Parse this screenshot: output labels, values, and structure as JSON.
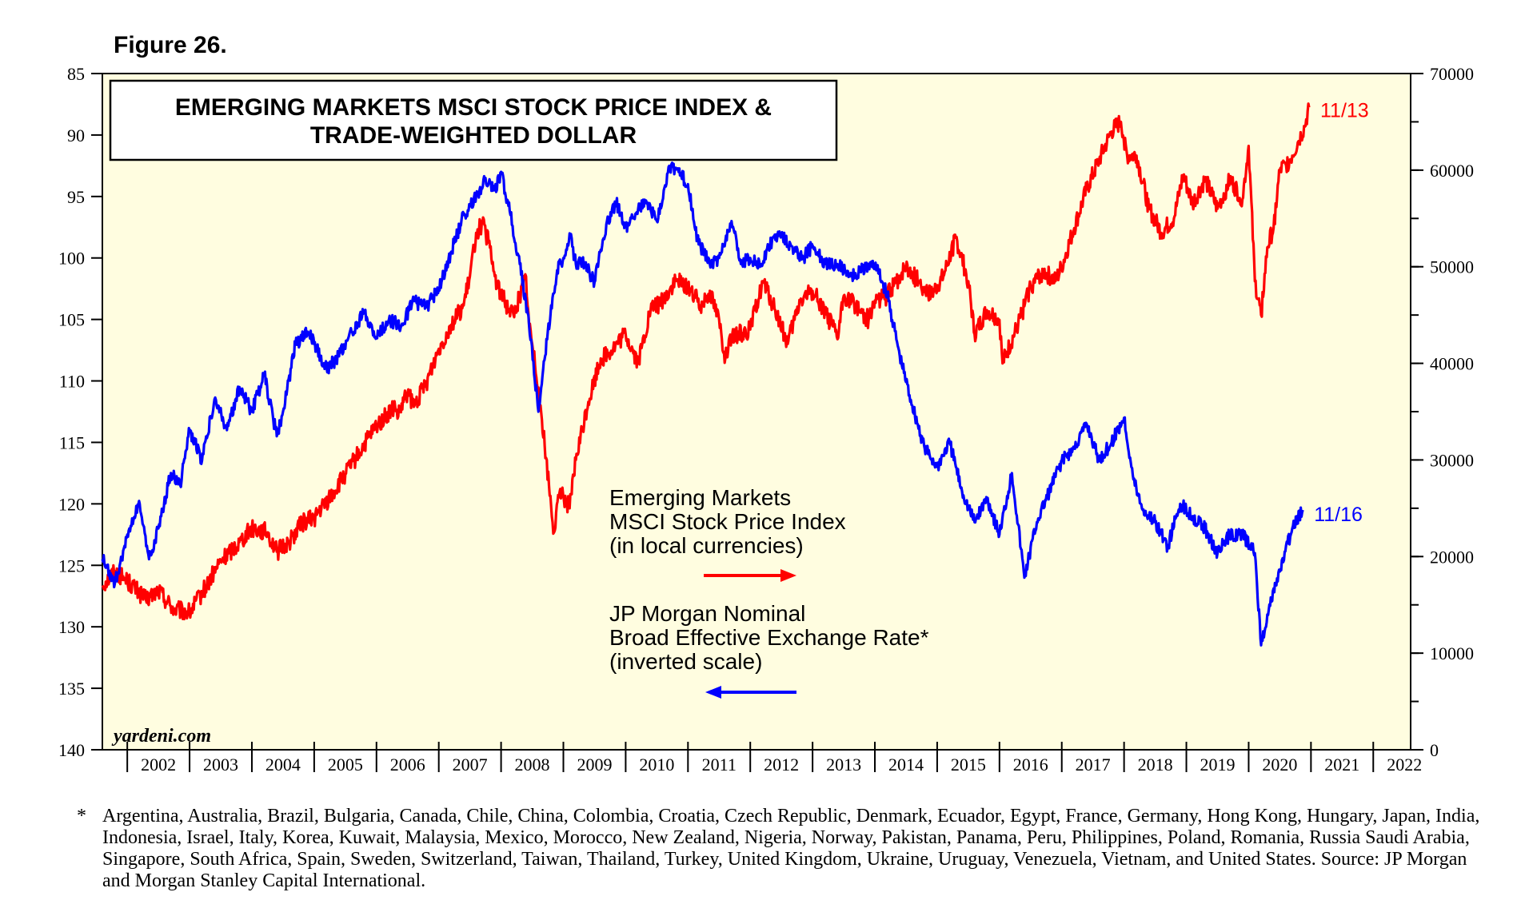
{
  "figure_label": "Figure 26.",
  "chart_data": {
    "type": "line",
    "title": "EMERGING MARKETS MSCI STOCK PRICE INDEX & TRADE-WEIGHTED DOLLAR",
    "title_lines": [
      "EMERGING MARKETS MSCI STOCK PRICE INDEX &",
      "TRADE-WEIGHTED DOLLAR"
    ],
    "x_range": [
      2001.6,
      2022.6
    ],
    "x_tick_labels": [
      "2002",
      "2003",
      "2004",
      "2005",
      "2006",
      "2007",
      "2008",
      "2009",
      "2010",
      "2011",
      "2012",
      "2013",
      "2014",
      "2015",
      "2016",
      "2017",
      "2018",
      "2019",
      "2020",
      "2021",
      "2022"
    ],
    "left_axis": {
      "range": [
        85,
        140
      ],
      "inverted": true,
      "ticks": [
        "85",
        "90",
        "95",
        "100",
        "105",
        "110",
        "115",
        "120",
        "125",
        "130",
        "135",
        "140"
      ]
    },
    "right_axis": {
      "range": [
        0,
        70000
      ],
      "ticks": [
        "0",
        "10000",
        "20000",
        "30000",
        "40000",
        "50000",
        "60000",
        "70000"
      ]
    },
    "grid": false,
    "background": "#fffde0",
    "series": [
      {
        "name": "Emerging Markets MSCI Stock Price Index (in local currencies)",
        "axis": "right",
        "color": "#ff0000",
        "end_label": "11/13",
        "x": [
          2001.6,
          2001.8,
          2002.0,
          2002.3,
          2002.5,
          2002.75,
          2003.0,
          2003.2,
          2003.5,
          2003.8,
          2004.0,
          2004.25,
          2004.4,
          2004.6,
          2004.8,
          2005.0,
          2005.3,
          2005.5,
          2005.8,
          2006.0,
          2006.3,
          2006.35,
          2006.5,
          2006.6,
          2006.8,
          2007.0,
          2007.2,
          2007.4,
          2007.5,
          2007.6,
          2007.7,
          2007.8,
          2007.9,
          2008.0,
          2008.2,
          2008.4,
          2008.45,
          2008.5,
          2008.6,
          2008.7,
          2008.85,
          2008.95,
          2009.1,
          2009.2,
          2009.4,
          2009.6,
          2009.8,
          2010.0,
          2010.2,
          2010.4,
          2010.6,
          2010.8,
          2011.0,
          2011.2,
          2011.35,
          2011.5,
          2011.6,
          2011.7,
          2011.8,
          2012.0,
          2012.2,
          2012.4,
          2012.6,
          2012.8,
          2013.0,
          2013.2,
          2013.4,
          2013.5,
          2013.7,
          2013.9,
          2014.0,
          2014.2,
          2014.3,
          2014.5,
          2014.7,
          2014.9,
          2015.1,
          2015.3,
          2015.5,
          2015.6,
          2015.8,
          2016.0,
          2016.05,
          2016.3,
          2016.5,
          2016.7,
          2016.9,
          2017.0,
          2017.2,
          2017.4,
          2017.6,
          2017.8,
          2017.95,
          2018.05,
          2018.2,
          2018.4,
          2018.6,
          2018.8,
          2018.95,
          2019.1,
          2019.3,
          2019.5,
          2019.7,
          2019.9,
          2020.0,
          2020.1,
          2020.2,
          2020.3,
          2020.4,
          2020.5,
          2020.6,
          2020.7,
          2020.8,
          2020.9,
          2020.97
        ],
        "values": [
          17000,
          18500,
          17500,
          15500,
          16500,
          14500,
          14200,
          16200,
          19500,
          21500,
          23000,
          22500,
          20500,
          21500,
          23500,
          24000,
          26500,
          28500,
          31500,
          33500,
          35500,
          34500,
          37000,
          35500,
          38000,
          41500,
          44000,
          46000,
          49000,
          53500,
          54500,
          52500,
          49000,
          47000,
          45000,
          49000,
          44000,
          42000,
          37500,
          31500,
          22500,
          27000,
          25000,
          30000,
          36000,
          40500,
          41500,
          43000,
          40000,
          45500,
          46500,
          48500,
          48000,
          46000,
          47500,
          44500,
          40500,
          42500,
          43000,
          43500,
          48500,
          45500,
          42000,
          46500,
          47500,
          45500,
          42500,
          47000,
          46000,
          44500,
          46500,
          47000,
          48000,
          50000,
          48500,
          47000,
          49000,
          53000,
          48500,
          43000,
          45500,
          44500,
          40000,
          44000,
          48000,
          49500,
          48500,
          50000,
          54000,
          58000,
          61000,
          64000,
          65000,
          61500,
          61500,
          56000,
          53500,
          55000,
          59500,
          56500,
          59000,
          56000,
          59000,
          57000,
          62500,
          48500,
          45000,
          52000,
          54000,
          60000,
          60500,
          61500,
          63000,
          64500,
          66500
        ]
      },
      {
        "name": "JP Morgan Nominal Broad Effective Exchange Rate* (inverted scale)",
        "axis": "left",
        "color": "#0000ff",
        "end_label": "11/16",
        "x": [
          2001.6,
          2001.8,
          2002.0,
          2002.2,
          2002.35,
          2002.5,
          2002.7,
          2002.85,
          2003.0,
          2003.2,
          2003.4,
          2003.6,
          2003.8,
          2004.0,
          2004.2,
          2004.4,
          2004.5,
          2004.7,
          2004.9,
          2005.0,
          2005.2,
          2005.4,
          2005.6,
          2005.8,
          2006.0,
          2006.2,
          2006.4,
          2006.6,
          2006.8,
          2007.0,
          2007.2,
          2007.4,
          2007.6,
          2007.75,
          2007.9,
          2008.0,
          2008.15,
          2008.3,
          2008.45,
          2008.6,
          2008.75,
          2008.9,
          2009.0,
          2009.1,
          2009.2,
          2009.35,
          2009.5,
          2009.7,
          2009.85,
          2010.0,
          2010.2,
          2010.35,
          2010.5,
          2010.7,
          2010.85,
          2011.0,
          2011.15,
          2011.35,
          2011.5,
          2011.7,
          2011.85,
          2012.0,
          2012.2,
          2012.35,
          2012.5,
          2012.7,
          2012.85,
          2013.0,
          2013.2,
          2013.4,
          2013.6,
          2013.8,
          2014.0,
          2014.2,
          2014.4,
          2014.6,
          2014.8,
          2015.0,
          2015.2,
          2015.4,
          2015.6,
          2015.8,
          2016.0,
          2016.2,
          2016.4,
          2016.6,
          2016.8,
          2017.0,
          2017.2,
          2017.4,
          2017.6,
          2017.8,
          2018.0,
          2018.15,
          2018.3,
          2018.5,
          2018.7,
          2018.9,
          2019.1,
          2019.3,
          2019.5,
          2019.7,
          2019.9,
          2020.1,
          2020.2,
          2020.3,
          2020.5,
          2020.7,
          2020.87
        ],
        "values": [
          124.5,
          126.5,
          122.5,
          120.0,
          124.5,
          122.0,
          117.5,
          118.5,
          114.0,
          116.5,
          111.5,
          114.0,
          110.5,
          112.5,
          109.5,
          114.5,
          112.5,
          107.0,
          106.0,
          107.0,
          109.0,
          108.0,
          106.0,
          104.5,
          106.5,
          105.0,
          105.5,
          103.5,
          104.0,
          102.5,
          99.5,
          96.5,
          95.0,
          93.5,
          94.5,
          93.0,
          96.5,
          100.5,
          105.5,
          112.5,
          106.0,
          101.0,
          100.0,
          98.0,
          100.5,
          100.5,
          102.0,
          97.0,
          95.5,
          97.5,
          96.0,
          95.5,
          97.0,
          92.5,
          93.0,
          94.0,
          98.5,
          100.5,
          100.0,
          97.0,
          100.5,
          100.0,
          100.5,
          98.5,
          98.0,
          99.5,
          100.0,
          99.0,
          100.5,
          100.5,
          101.5,
          101.0,
          100.5,
          103.0,
          108.0,
          112.0,
          115.5,
          117.0,
          115.0,
          119.0,
          121.5,
          119.5,
          122.5,
          117.5,
          126.0,
          121.5,
          119.0,
          116.5,
          115.5,
          113.5,
          116.5,
          115.0,
          113.0,
          118.0,
          120.5,
          121.5,
          123.5,
          120.0,
          121.0,
          122.0,
          124.0,
          122.5,
          122.5,
          124.0,
          131.5,
          129.0,
          125.5,
          122.0,
          120.5
        ]
      }
    ],
    "legend": [
      {
        "lines": [
          "Emerging Markets",
          "MSCI Stock Price Index",
          "(in local currencies)"
        ],
        "arrow": "right",
        "color": "#ff0000"
      },
      {
        "lines": [
          "JP Morgan Nominal",
          "Broad Effective Exchange Rate*",
          "(inverted scale)"
        ],
        "arrow": "left",
        "color": "#0000ff"
      }
    ],
    "credit": "yardeni.com"
  },
  "footnote": {
    "marker": "*",
    "text": "Argentina, Australia, Brazil, Bulgaria, Canada, Chile, China, Colombia, Croatia, Czech Republic, Denmark, Ecuador, Egypt, France, Germany, Hong Kong, Hungary, Japan, India, Indonesia, Israel, Italy, Korea, Kuwait, Malaysia, Mexico, Morocco, New Zealand, Nigeria, Norway, Pakistan, Panama, Peru, Philippines, Poland, Romania, Russia Saudi Arabia, Singapore, South Africa, Spain, Sweden, Switzerland, Taiwan, Thailand, Turkey, United Kingdom, Ukraine, Uruguay, Venezuela, Vietnam, and United States. Source: JP Morgan and Morgan Stanley Capital International."
  }
}
